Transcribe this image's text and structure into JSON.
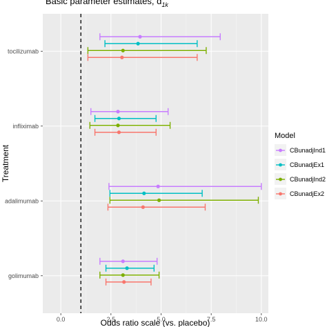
{
  "chart_data": {
    "type": "forest",
    "title": "Basic parameter estimates, d",
    "title_subscript": "1k",
    "xlabel": "Odds ratio scale (vs. placebo)",
    "ylabel": "Treatment",
    "xlim": [
      -0.9,
      10.35
    ],
    "x_ticks": [
      {
        "value": 0,
        "label": "0.0"
      },
      {
        "value": 2.5,
        "label": "2.5"
      },
      {
        "value": 5,
        "label": "5.0"
      },
      {
        "value": 7.5,
        "label": "7.5"
      },
      {
        "value": 10,
        "label": "10.0"
      }
    ],
    "reference_line": 1,
    "grid": true,
    "legend_position": "right",
    "legend_title": "Model",
    "categories": [
      "tocilizumab",
      "infliximab",
      "adalimumab",
      "golimumab"
    ],
    "series": [
      {
        "name": "CBunadjInd1",
        "color": "#c77cff",
        "points": [
          {
            "category": "tocilizumab",
            "est": 3.95,
            "lo": 1.95,
            "hi": 7.95
          },
          {
            "category": "infliximab",
            "est": 2.85,
            "lo": 1.5,
            "hi": 5.35
          },
          {
            "category": "adalimumab",
            "est": 4.85,
            "lo": 2.4,
            "hi": 10.0
          },
          {
            "category": "golimumab",
            "est": 3.1,
            "lo": 1.95,
            "hi": 4.8
          }
        ]
      },
      {
        "name": "CBunadjEx1",
        "color": "#00bfc4",
        "points": [
          {
            "category": "tocilizumab",
            "est": 3.85,
            "lo": 2.2,
            "hi": 6.8
          },
          {
            "category": "infliximab",
            "est": 2.9,
            "lo": 1.7,
            "hi": 4.75
          },
          {
            "category": "adalimumab",
            "est": 4.15,
            "lo": 2.45,
            "hi": 7.05
          },
          {
            "category": "golimumab",
            "est": 3.3,
            "lo": 2.25,
            "hi": 4.65
          }
        ]
      },
      {
        "name": "CBunadjInd2",
        "color": "#7cae00",
        "points": [
          {
            "category": "tocilizumab",
            "est": 3.1,
            "lo": 1.35,
            "hi": 7.25
          },
          {
            "category": "infliximab",
            "est": 2.85,
            "lo": 1.45,
            "hi": 5.45
          },
          {
            "category": "adalimumab",
            "est": 4.9,
            "lo": 2.45,
            "hi": 9.85
          },
          {
            "category": "golimumab",
            "est": 3.1,
            "lo": 1.95,
            "hi": 4.9
          }
        ]
      },
      {
        "name": "CBunadjEx2",
        "color": "#f8766d",
        "points": [
          {
            "category": "tocilizumab",
            "est": 3.05,
            "lo": 1.35,
            "hi": 6.8
          },
          {
            "category": "infliximab",
            "est": 2.9,
            "lo": 1.7,
            "hi": 4.75
          },
          {
            "category": "adalimumab",
            "est": 4.1,
            "lo": 2.35,
            "hi": 7.2
          },
          {
            "category": "golimumab",
            "est": 3.15,
            "lo": 2.25,
            "hi": 4.5
          }
        ]
      }
    ]
  }
}
